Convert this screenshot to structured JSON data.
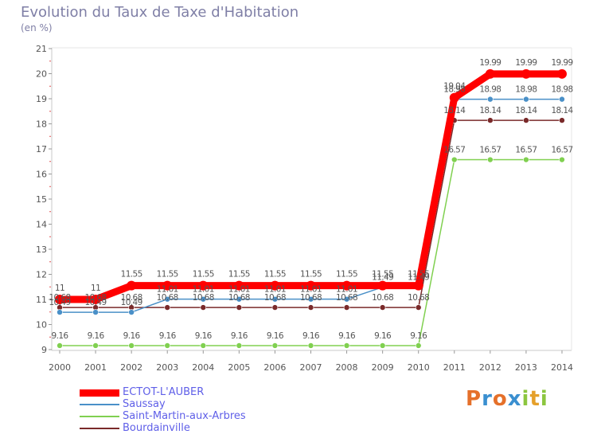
{
  "header": {
    "title": "Evolution du Taux de Taxe d'Habitation",
    "unit": "(en %)"
  },
  "logo": {
    "text": "Proxiti"
  },
  "chart_data": {
    "type": "line",
    "x": [
      "2000",
      "2001",
      "2002",
      "2003",
      "2004",
      "2005",
      "2006",
      "2007",
      "2008",
      "2009",
      "2010",
      "2011",
      "2012",
      "2013",
      "2014"
    ],
    "ylim": [
      9,
      21
    ],
    "yticks": [
      9,
      10,
      11,
      12,
      13,
      14,
      15,
      16,
      17,
      18,
      19,
      20,
      21
    ],
    "grid": false,
    "legend_position": "bottom-left",
    "series": [
      {
        "name": "ECTOT-L'AUBER",
        "color": "#ff0000",
        "values": [
          11,
          11,
          11.55,
          11.55,
          11.55,
          11.55,
          11.55,
          11.55,
          11.55,
          11.55,
          11.55,
          19.04,
          19.99,
          19.99,
          19.99
        ],
        "labels": [
          "11",
          "11",
          "11.55",
          "11.55",
          "11.55",
          "11.55",
          "11.55",
          "11.55",
          "11.55",
          "11.55",
          "11.55",
          "19.04",
          "19.99",
          "19.99",
          "19.99"
        ]
      },
      {
        "name": "Saussay",
        "color": "#4a90c8",
        "values": [
          10.49,
          10.49,
          10.49,
          11.01,
          11.01,
          11.01,
          11.01,
          11.01,
          11.01,
          11.49,
          11.49,
          18.98,
          18.98,
          18.98,
          18.98
        ],
        "labels": [
          "10.49",
          "10.49",
          "10.49",
          "11.01",
          "11.01",
          "11.01",
          "11.01",
          "11.01",
          "11.01",
          "11.49",
          "11.49",
          "18.98",
          "18.98",
          "18.98",
          "18.98"
        ]
      },
      {
        "name": "Saint-Martin-aux-Arbres",
        "color": "#80d050",
        "values": [
          9.16,
          9.16,
          9.16,
          9.16,
          9.16,
          9.16,
          9.16,
          9.16,
          9.16,
          9.16,
          9.16,
          16.57,
          16.57,
          16.57,
          16.57
        ],
        "labels": [
          "9.16",
          "9.16",
          "9.16",
          "9.16",
          "9.16",
          "9.16",
          "9.16",
          "9.16",
          "9.16",
          "9.16",
          "9.16",
          "16.57",
          "16.57",
          "16.57",
          "16.57"
        ]
      },
      {
        "name": "Bourdainville",
        "color": "#7a2a2a",
        "values": [
          10.68,
          10.68,
          10.68,
          10.68,
          10.68,
          10.68,
          10.68,
          10.68,
          10.68,
          10.68,
          10.68,
          18.14,
          18.14,
          18.14,
          18.14
        ],
        "labels": [
          "10.68",
          "10.68",
          "10.68",
          "10.68",
          "10.68",
          "10.68",
          "10.68",
          "10.68",
          "10.68",
          "10.68",
          "10.68",
          "18.14",
          "18.14",
          "18.14",
          "18.14"
        ]
      }
    ]
  }
}
